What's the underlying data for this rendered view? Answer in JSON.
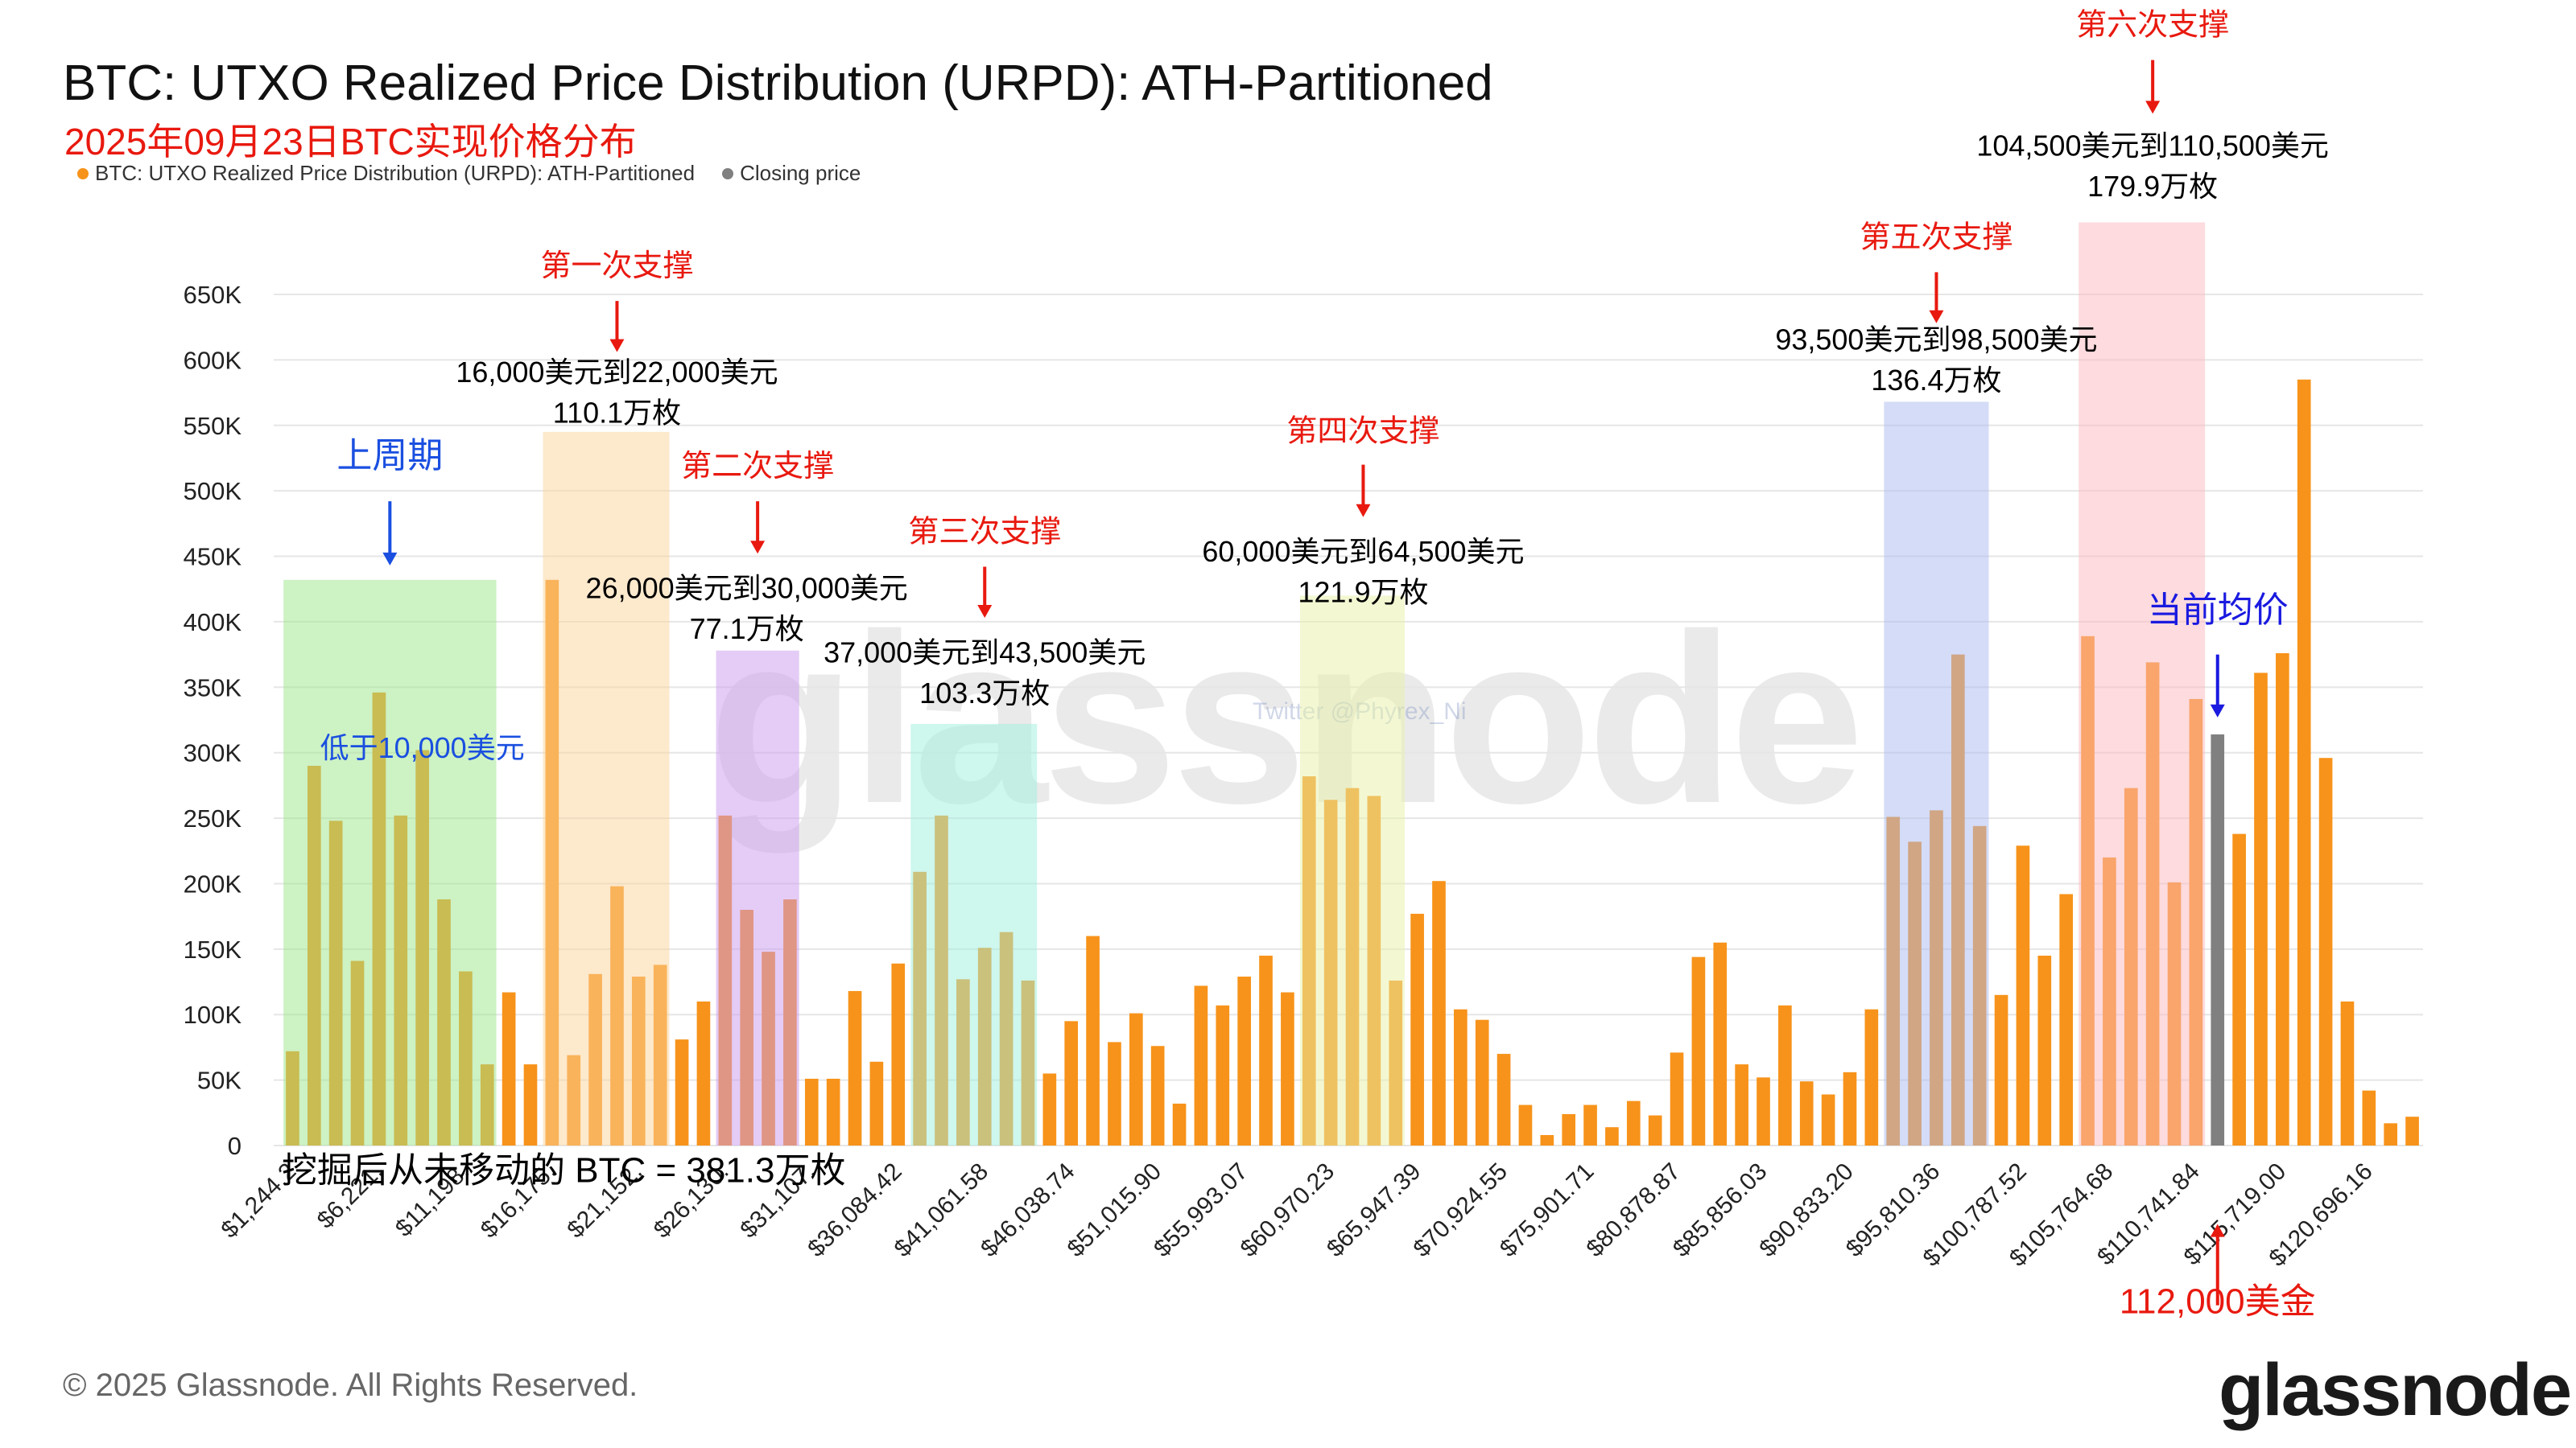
{
  "title": "BTC: UTXO Realized Price Distribution (URPD): ATH-Partitioned",
  "subtitle": "2025年09月23日BTC实现价格分布",
  "legend": [
    {
      "label": "BTC: UTXO Realized Price Distribution (URPD): ATH-Partitioned",
      "color": "#f7931a"
    },
    {
      "label": "Closing price",
      "color": "#808080"
    }
  ],
  "footer": "© 2025 Glassnode. All Rights Reserved.",
  "logo": "glassnode",
  "watermark": "glassnode",
  "twitter": "Twitter @Phyrex_Ni",
  "chart_data": {
    "type": "bar",
    "ylim": [
      0,
      650000
    ],
    "y_ticks": [
      "0",
      "50K",
      "100K",
      "150K",
      "200K",
      "250K",
      "300K",
      "350K",
      "400K",
      "450K",
      "500K",
      "550K",
      "600K",
      "650K"
    ],
    "x_tick_labels": [
      "$1,244.2",
      "$6,221.",
      "$11,198.",
      "$16,175.",
      "$21,152.",
      "$26,130.",
      "$31,107.",
      "$36,084.42",
      "$41,061.58",
      "$46,038.74",
      "$51,015.90",
      "$55,993.07",
      "$60,970.23",
      "$65,947.39",
      "$70,924.55",
      "$75,901.71",
      "$80,878.87",
      "$85,856.03",
      "$90,833.20",
      "$95,810.36",
      "$100,787.52",
      "$105,764.68",
      "$110,741.84",
      "$115,719.00",
      "$120,696.16"
    ],
    "series": [
      {
        "color": "#f7931a",
        "values": [
          72000,
          290000,
          248000,
          141000,
          346000,
          252000,
          302000,
          188000,
          133000,
          62000,
          117000,
          62000,
          432000,
          69000,
          131000,
          198000,
          129000,
          138000,
          81000,
          110000,
          252000,
          180000,
          148000,
          188000,
          51000,
          51000,
          118000,
          64000,
          139000,
          209000,
          252000,
          127000,
          151000,
          163000,
          126000,
          55000,
          95000,
          160000,
          79000,
          101000,
          76000,
          32000,
          122000,
          107000,
          129000,
          145000,
          117000,
          282000,
          264000,
          273000,
          267000,
          126000,
          177000,
          202000,
          104000,
          96000,
          70000,
          31000,
          8000,
          24000,
          31000,
          14000,
          34000,
          23000,
          71000,
          144000,
          155000,
          62000,
          52000,
          107000,
          49000,
          39000,
          56000,
          104000,
          251000,
          232000,
          256000,
          375000,
          244000,
          115000,
          229000,
          145000,
          192000,
          389000,
          220000,
          273000,
          369000,
          201000,
          341000,
          null,
          238000,
          361000,
          376000,
          585000,
          296000,
          110000,
          42000,
          17000,
          22000
        ]
      },
      {
        "name": "Closing price",
        "color": "#808080",
        "values": [
          null,
          null,
          null,
          null,
          null,
          null,
          null,
          null,
          null,
          null,
          null,
          null,
          null,
          null,
          null,
          null,
          null,
          null,
          null,
          null,
          null,
          null,
          null,
          null,
          null,
          null,
          null,
          null,
          null,
          null,
          null,
          null,
          null,
          null,
          null,
          null,
          null,
          null,
          null,
          null,
          null,
          null,
          null,
          null,
          null,
          null,
          null,
          null,
          null,
          null,
          null,
          null,
          null,
          null,
          null,
          null,
          null,
          null,
          null,
          null,
          null,
          null,
          null,
          null,
          null,
          null,
          null,
          null,
          null,
          null,
          null,
          null,
          null,
          null,
          null,
          null,
          null,
          null,
          null,
          null,
          null,
          null,
          null,
          null,
          null,
          null,
          null,
          null,
          null,
          314000,
          null,
          null,
          null,
          null,
          null,
          null,
          null,
          null,
          null
        ]
      }
    ],
    "regions": [
      {
        "from": 0,
        "to": 9,
        "top": 432000,
        "color": "#9be58a"
      },
      {
        "from": 12,
        "to": 17,
        "top": 545000,
        "color": "#fbd39a"
      },
      {
        "from": 20,
        "to": 23,
        "top": 378000,
        "color": "#c99af0"
      },
      {
        "from": 29,
        "to": 34,
        "top": 322000,
        "color": "#9ef0dd"
      },
      {
        "from": 47,
        "to": 51,
        "top": 420000,
        "color": "#e8f1a8"
      },
      {
        "from": 74,
        "to": 78,
        "top": 568000,
        "color": "#a9b9f0"
      },
      {
        "from": 83,
        "to": 88,
        "top": 705000,
        "color": "#fbb8bd"
      }
    ],
    "annotations": [
      {
        "kind": "label",
        "text": "上周期",
        "anchor": 4.5,
        "value": 518000,
        "color": "#1a4fe0",
        "size": 44
      },
      {
        "kind": "arrow",
        "anchor": 4.5,
        "from": 492000,
        "to": 443000,
        "color": "#1a4fe0"
      },
      {
        "kind": "label",
        "text": "低于10,000美元",
        "anchor": 6,
        "value": 296000,
        "color": "#1a4fe0",
        "size": 36
      },
      {
        "kind": "label",
        "text": "第一次支撑",
        "anchor": 15,
        "value": 664000,
        "color": "#e8190f",
        "size": 38
      },
      {
        "kind": "arrow",
        "anchor": 15,
        "from": 645000,
        "to": 606000,
        "color": "#e8190f"
      },
      {
        "kind": "label",
        "text": "16,000美元到22,000美元",
        "anchor": 15,
        "value": 583000,
        "color": "#000000",
        "size": 36
      },
      {
        "kind": "label",
        "text": "110.1万枚",
        "anchor": 15,
        "value": 552000,
        "color": "#000000",
        "size": 36
      },
      {
        "kind": "label",
        "text": "第二次支撑",
        "anchor": 21.5,
        "value": 511000,
        "color": "#e8190f",
        "size": 38
      },
      {
        "kind": "arrow",
        "anchor": 21.5,
        "from": 492000,
        "to": 452000,
        "color": "#e8190f"
      },
      {
        "kind": "label",
        "text": "26,000美元到30,000美元",
        "anchor": 21,
        "value": 418000,
        "color": "#000000",
        "size": 36
      },
      {
        "kind": "label",
        "text": "77.1万枚",
        "anchor": 21,
        "value": 387000,
        "color": "#000000",
        "size": 36
      },
      {
        "kind": "label",
        "text": "第三次支撑",
        "anchor": 32,
        "value": 461000,
        "color": "#e8190f",
        "size": 38
      },
      {
        "kind": "arrow",
        "anchor": 32,
        "from": 442000,
        "to": 403000,
        "color": "#e8190f"
      },
      {
        "kind": "label",
        "text": "37,000美元到43,500美元",
        "anchor": 32,
        "value": 369000,
        "color": "#000000",
        "size": 36
      },
      {
        "kind": "label",
        "text": "103.3万枚",
        "anchor": 32,
        "value": 338000,
        "color": "#000000",
        "size": 36
      },
      {
        "kind": "label",
        "text": "第四次支撑",
        "anchor": 49.5,
        "value": 538000,
        "color": "#e8190f",
        "size": 38
      },
      {
        "kind": "arrow",
        "anchor": 49.5,
        "from": 520000,
        "to": 480000,
        "color": "#e8190f"
      },
      {
        "kind": "label",
        "text": "60,000美元到64,500美元",
        "anchor": 49.5,
        "value": 446000,
        "color": "#000000",
        "size": 36
      },
      {
        "kind": "label",
        "text": "121.9万枚",
        "anchor": 49.5,
        "value": 415000,
        "color": "#000000",
        "size": 36
      },
      {
        "kind": "label",
        "text": "第五次支撑",
        "anchor": 76,
        "value": 686000,
        "color": "#e8190f",
        "size": 38
      },
      {
        "kind": "arrow",
        "anchor": 76,
        "from": 667000,
        "to": 628000,
        "color": "#e8190f"
      },
      {
        "kind": "label",
        "text": "93,500美元到98,500美元",
        "anchor": 76,
        "value": 608000,
        "color": "#000000",
        "size": 36
      },
      {
        "kind": "label",
        "text": "136.4万枚",
        "anchor": 76,
        "value": 577000,
        "color": "#000000",
        "size": 36
      },
      {
        "kind": "label",
        "text": "第六次支撑",
        "anchor": 86,
        "value": 848000,
        "color": "#e8190f",
        "size": 38
      },
      {
        "kind": "arrow",
        "anchor": 86,
        "from": 829000,
        "to": 788000,
        "color": "#e8190f"
      },
      {
        "kind": "label",
        "text": "104,500美元到110,500美元",
        "anchor": 86,
        "value": 756000,
        "color": "#000000",
        "size": 36
      },
      {
        "kind": "label",
        "text": "179.9万枚",
        "anchor": 86,
        "value": 725000,
        "color": "#000000",
        "size": 36
      },
      {
        "kind": "label",
        "text": "当前均价",
        "anchor": 89,
        "value": 400000,
        "color": "#1a1ae0",
        "size": 44
      },
      {
        "kind": "arrow",
        "anchor": 89,
        "from": 375000,
        "to": 327000,
        "color": "#1a1ae0"
      },
      {
        "kind": "label-left",
        "text": "挖掘后从未移动的 BTC = 381.3万枚",
        "anchor": -0.5,
        "value": -28000,
        "color": "#000000",
        "size": 44
      },
      {
        "kind": "arrow",
        "anchor": 89,
        "from": -122000,
        "to": -60000,
        "color": "#e8190f"
      },
      {
        "kind": "label",
        "text": "112,000美金",
        "anchor": 89,
        "value": -128000,
        "color": "#e8190f",
        "size": 44
      }
    ]
  }
}
